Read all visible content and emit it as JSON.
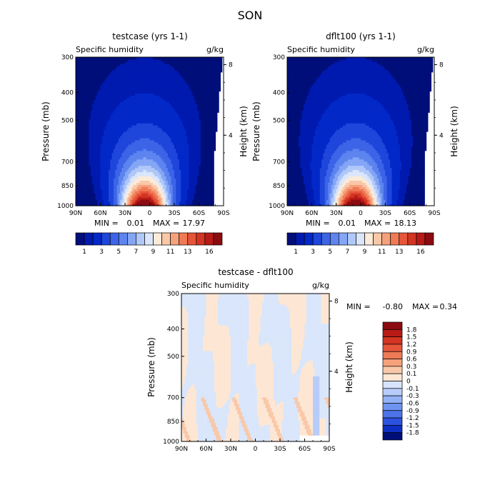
{
  "page_title": "SON",
  "colors": {
    "cool_to_warm": [
      "#000e7a",
      "#001ab0",
      "#0228c8",
      "#1e46db",
      "#3d64e7",
      "#5d84ef",
      "#84a6f5",
      "#b0c8f9",
      "#dbe6fb",
      "#fcebd8",
      "#f9c8a8",
      "#f5a17c",
      "#ef7a55",
      "#e6553a",
      "#d33423",
      "#b71a17",
      "#8c0b10"
    ],
    "diff_scale": [
      "#000e7a",
      "#0e2fc4",
      "#2c52df",
      "#4d73ea",
      "#6e93f1",
      "#93b2f6",
      "#b7ccf8",
      "#d6e3fa",
      "#fde7d4",
      "#f9c8a8",
      "#f5a17c",
      "#ef7a55",
      "#e6553a",
      "#d33423",
      "#b71a17",
      "#8c0b10"
    ]
  },
  "chart_data": [
    {
      "type": "heatmap",
      "title": "testcase (yrs 1-1)",
      "left_label": "Specific humidity",
      "right_label": "g/kg",
      "xlabel": "",
      "ylabel": "Pressure (mb)",
      "y2label": "Height (km)",
      "x_ticks": [
        "90N",
        "60N",
        "30N",
        "0",
        "30S",
        "60S",
        "90S"
      ],
      "y_ticks": [
        300,
        400,
        500,
        700,
        850,
        1000
      ],
      "y2_ticks": [
        8,
        4
      ],
      "stats": {
        "min_label": "MIN =",
        "min": "0.01",
        "max_label": "MAX =",
        "max": "17.97"
      },
      "colorbar_labels": [
        "1",
        "3",
        "5",
        "7",
        "9",
        "11",
        "13",
        "16"
      ],
      "max_value": 17.97
    },
    {
      "type": "heatmap",
      "title": "dflt100 (yrs 1-1)",
      "left_label": "Specific humidity",
      "right_label": "g/kg",
      "xlabel": "",
      "ylabel": "Pressure (mb)",
      "y2label": "Height (km)",
      "x_ticks": [
        "90N",
        "60N",
        "30N",
        "0",
        "30S",
        "60S",
        "90S"
      ],
      "y_ticks": [
        300,
        400,
        500,
        700,
        850,
        1000
      ],
      "y2_ticks": [
        8,
        4
      ],
      "stats": {
        "min_label": "MIN =",
        "min": "0.01",
        "max_label": "MAX =",
        "max": "18.13"
      },
      "colorbar_labels": [
        "1",
        "3",
        "5",
        "7",
        "9",
        "11",
        "13",
        "16"
      ],
      "max_value": 18.13
    },
    {
      "type": "heatmap",
      "title": "testcase - dflt100",
      "left_label": "Specific humidity",
      "right_label": "g/kg",
      "xlabel": "",
      "ylabel": "Pressure (mb)",
      "y2label": "Height (km)",
      "x_ticks": [
        "90N",
        "60N",
        "30N",
        "0",
        "30S",
        "60S",
        "90S"
      ],
      "y_ticks": [
        300,
        400,
        500,
        700,
        850,
        1000
      ],
      "y2_ticks": [
        8,
        4
      ],
      "stats": {
        "min_label": "MIN =",
        "min": "-0.80",
        "max_label": "MAX =",
        "max": "0.34"
      },
      "colorbar_labels": [
        "1.8",
        "1.5",
        "1.2",
        "0.9",
        "0.6",
        "0.3",
        "0.1",
        "0",
        "-0.1",
        "-0.3",
        "-0.6",
        "-0.9",
        "-1.2",
        "-1.5",
        "-1.8"
      ]
    }
  ]
}
